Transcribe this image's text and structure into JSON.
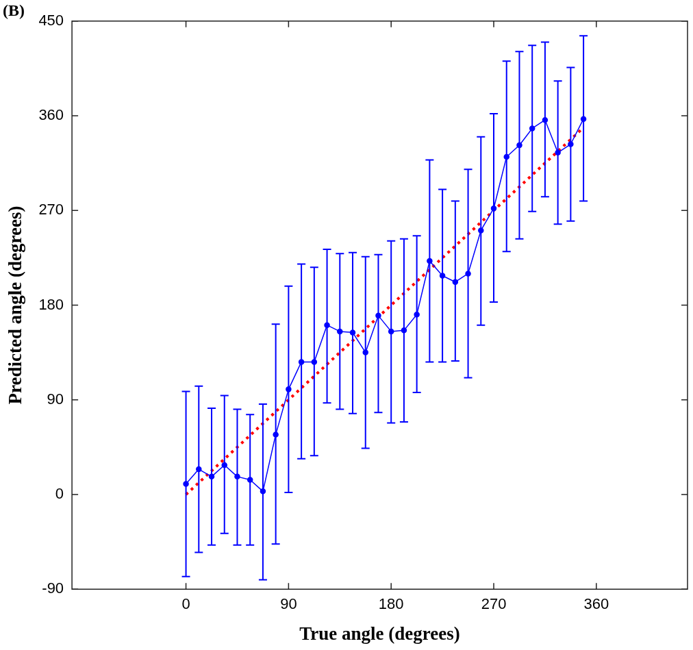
{
  "chart_data": {
    "type": "line",
    "title": "(B)",
    "xlabel": "True angle (degrees)",
    "ylabel": "Predicted angle (degrees)",
    "x": [
      0,
      11.25,
      22.5,
      33.75,
      45,
      56.25,
      67.5,
      78.75,
      90,
      101.25,
      112.5,
      123.75,
      135,
      146.25,
      157.5,
      168.75,
      180,
      191.25,
      202.5,
      213.75,
      225,
      236.25,
      247.5,
      258.75,
      270,
      281.25,
      292.5,
      303.75,
      315,
      326.25,
      337.5,
      348.75
    ],
    "series": [
      {
        "color": "#0000ff",
        "marker": "circle",
        "line_style": "solid",
        "values": [
          10,
          24,
          17,
          28,
          17,
          14,
          3,
          57,
          100,
          126,
          126,
          161,
          155,
          154,
          135,
          170,
          155,
          156,
          171,
          222,
          208,
          202,
          210,
          251,
          272,
          321,
          332,
          348,
          356,
          325,
          333,
          357
        ],
        "errors": [
          [
            -78,
            98
          ],
          [
            -55,
            103
          ],
          [
            -48,
            82
          ],
          [
            -37,
            94
          ],
          [
            -48,
            81
          ],
          [
            -48,
            76
          ],
          [
            -81,
            86
          ],
          [
            -47,
            162
          ],
          [
            2,
            198
          ],
          [
            34,
            219
          ],
          [
            37,
            216
          ],
          [
            87,
            233
          ],
          [
            81,
            229
          ],
          [
            77,
            230
          ],
          [
            44,
            226
          ],
          [
            78,
            228
          ],
          [
            68,
            241
          ],
          [
            69,
            243
          ],
          [
            97,
            246
          ],
          [
            126,
            318
          ],
          [
            126,
            290
          ],
          [
            127,
            279
          ],
          [
            111,
            309
          ],
          [
            161,
            340
          ],
          [
            183,
            362
          ],
          [
            231,
            412
          ],
          [
            243,
            421
          ],
          [
            269,
            427
          ],
          [
            283,
            430
          ],
          [
            257,
            393
          ],
          [
            260,
            406
          ],
          [
            279,
            436
          ]
        ]
      },
      {
        "type": "line",
        "color": "#ff0000",
        "marker": "none",
        "line_style": "dotted",
        "x": [
          0,
          348.75
        ],
        "values": [
          0,
          348.75
        ]
      }
    ],
    "xlim": [
      -100,
      440
    ],
    "xticks": [
      0,
      90,
      180,
      270,
      360
    ],
    "ylim": [
      -90,
      450
    ],
    "yticks": [
      -90,
      0,
      90,
      180,
      270,
      360,
      450
    ],
    "grid": false,
    "legend": false
  }
}
